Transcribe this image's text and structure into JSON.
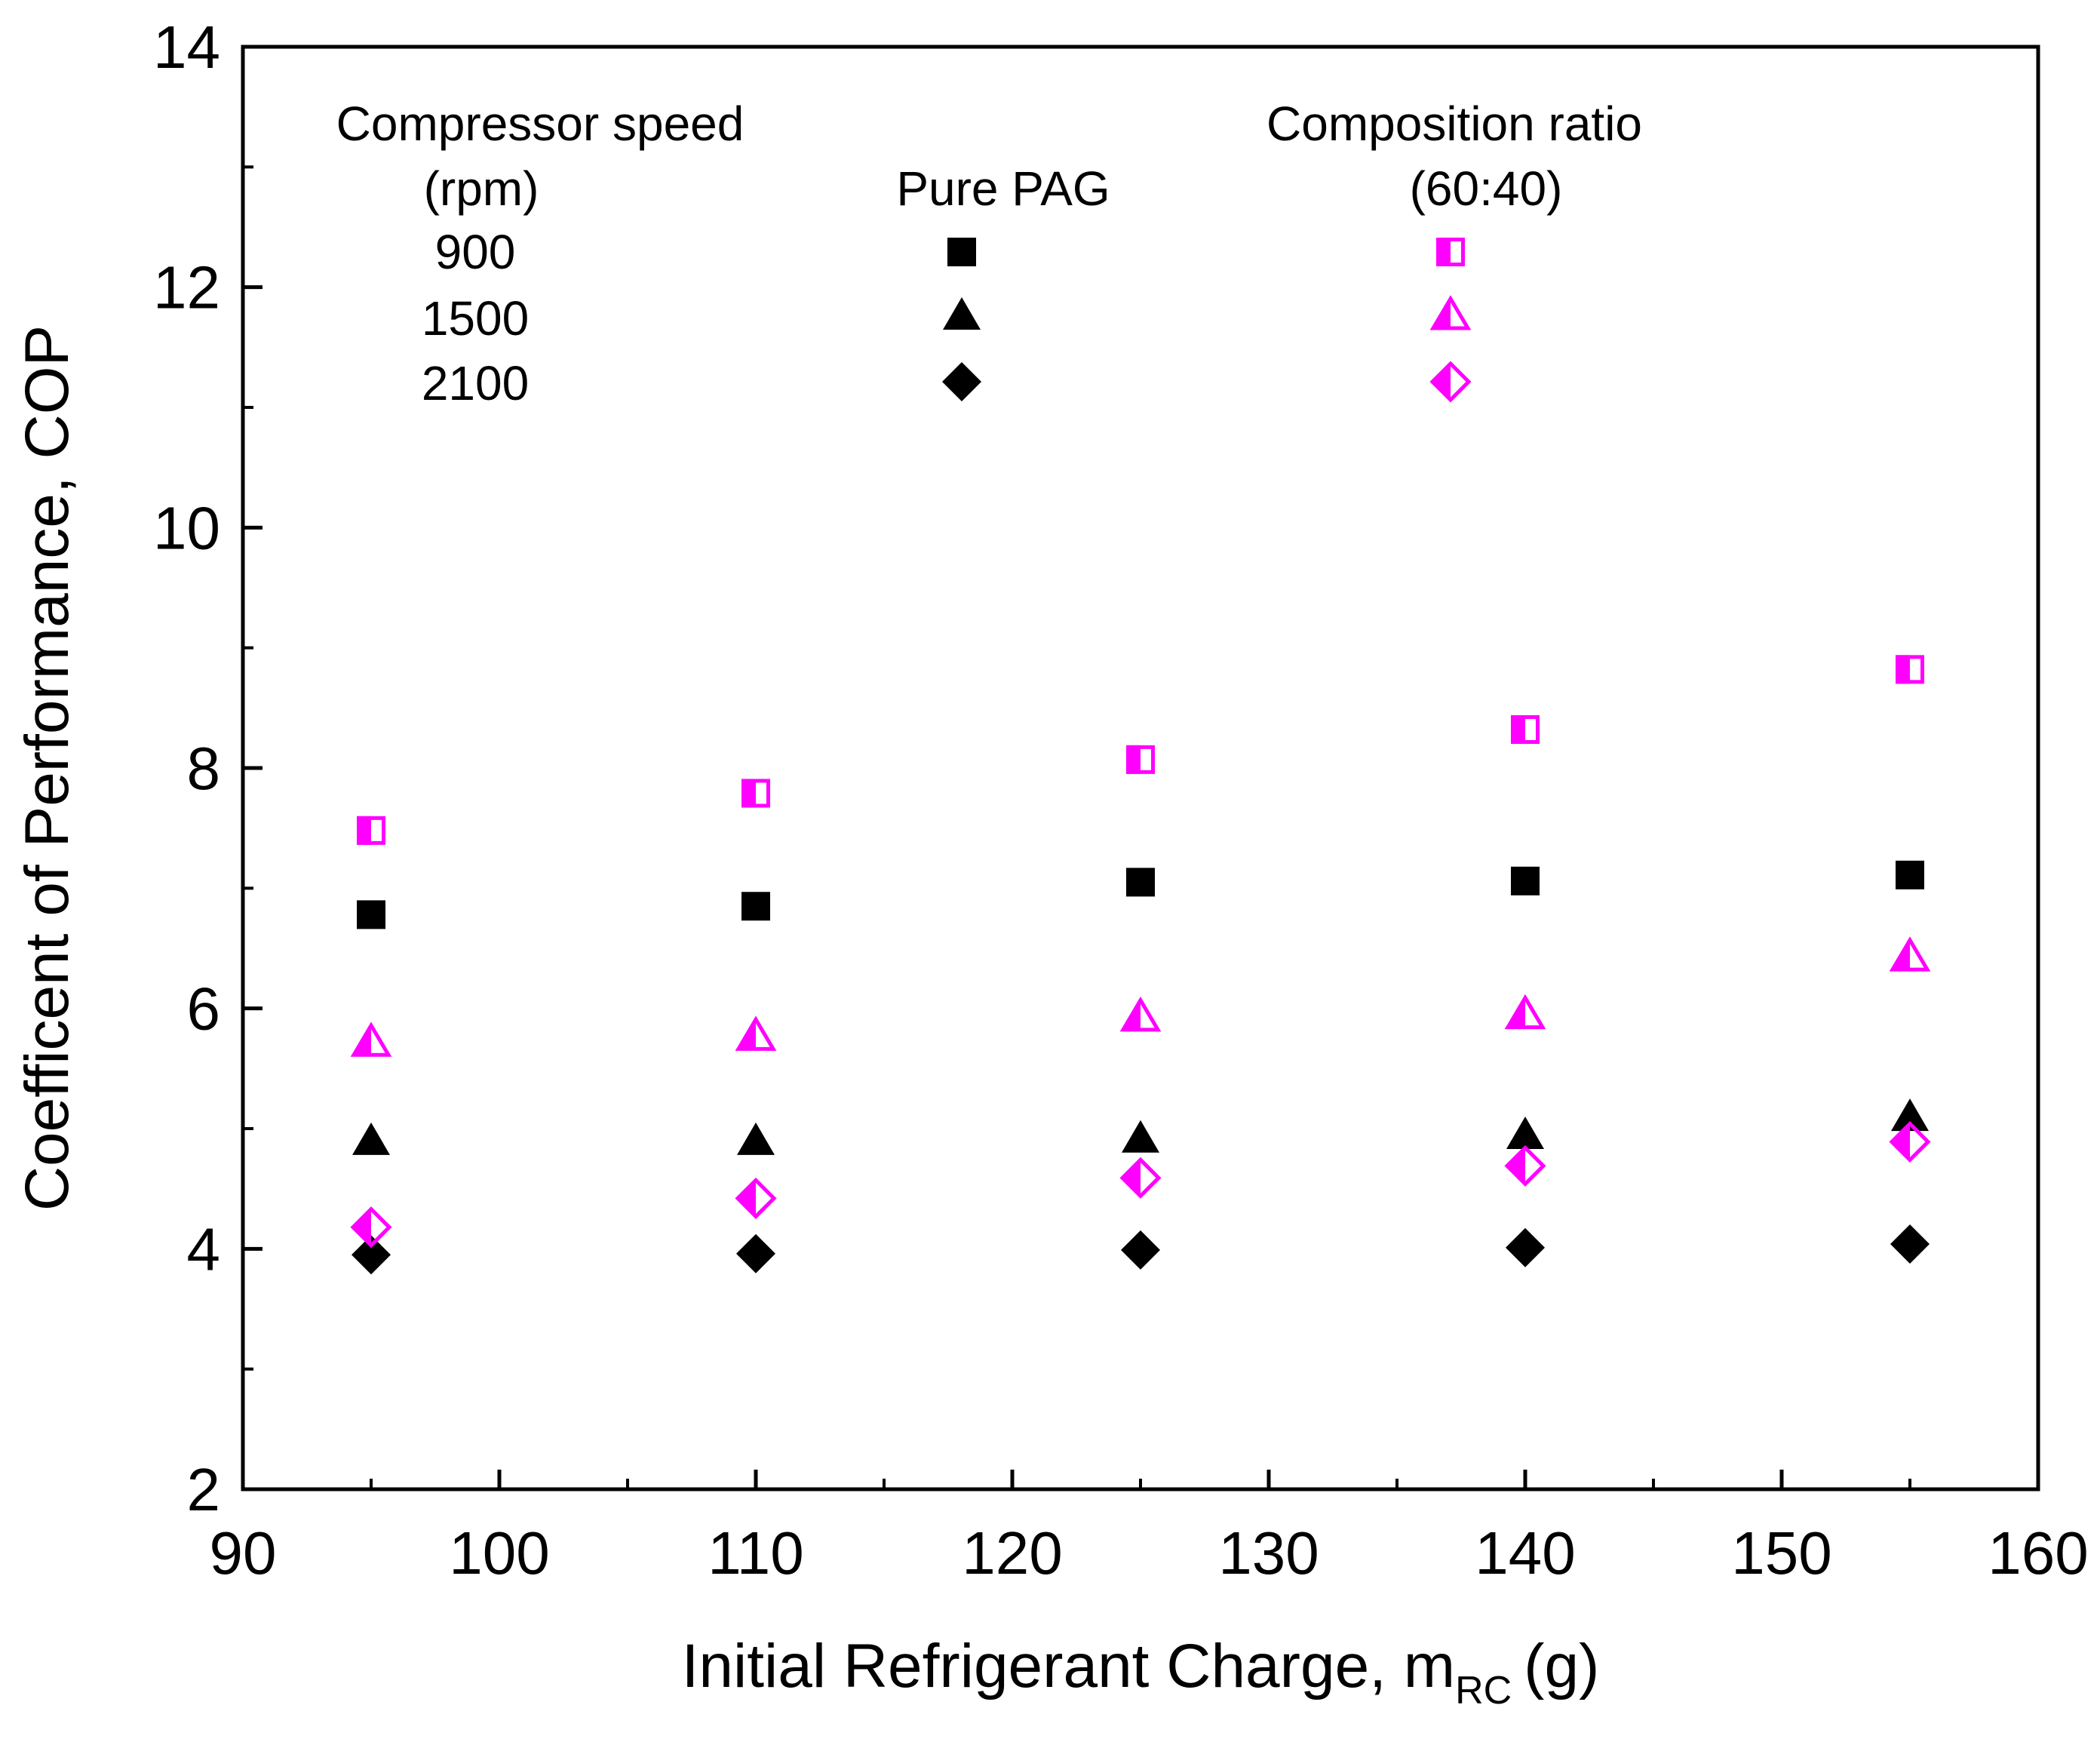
{
  "chart_data": {
    "type": "scatter",
    "title": "",
    "xlabel": "Initial Refrigerant Charge, m",
    "xlabel_sub": "RC",
    "xlabel_unit": "(g)",
    "ylabel": "Coefficent of Performance, COP",
    "xlim": [
      90,
      160
    ],
    "ylim": [
      2,
      14
    ],
    "xticks": [
      90,
      100,
      110,
      120,
      130,
      140,
      150,
      160
    ],
    "yticks": [
      2,
      4,
      6,
      8,
      10,
      12,
      14
    ],
    "grid": false,
    "legend": {
      "position": "top",
      "speed_header_line1": "Compressor speed",
      "speed_header_line2": "(rpm)",
      "pure_header": "Pure PAG",
      "comp_header_line1": "Composition ratio",
      "comp_header_line2": "(60:40)",
      "speeds": [
        "900",
        "1500",
        "2100"
      ]
    },
    "colors": {
      "pure": "#000000",
      "composition": "#ff00ff"
    },
    "x": [
      95,
      110,
      125,
      140,
      155
    ],
    "series": [
      {
        "name": "Pure PAG 900 rpm",
        "group": "pure",
        "marker": "square",
        "values": [
          6.78,
          6.85,
          7.05,
          7.06,
          7.11
        ]
      },
      {
        "name": "Pure PAG 1500 rpm",
        "group": "pure",
        "marker": "triangle",
        "values": [
          4.9,
          4.9,
          4.92,
          4.95,
          5.1
        ]
      },
      {
        "name": "Pure PAG 2100 rpm",
        "group": "pure",
        "marker": "diamond",
        "values": [
          3.95,
          3.96,
          3.99,
          4.01,
          4.04
        ]
      },
      {
        "name": "Composition ratio (60:40) 900 rpm",
        "group": "composition",
        "marker": "square-half",
        "values": [
          7.48,
          7.79,
          8.07,
          8.32,
          8.82
        ]
      },
      {
        "name": "Composition ratio (60:40) 1500 rpm",
        "group": "composition",
        "marker": "triangle-half",
        "values": [
          5.72,
          5.77,
          5.93,
          5.95,
          6.43
        ]
      },
      {
        "name": "Composition ratio (60:40) 2100 rpm",
        "group": "composition",
        "marker": "diamond-half",
        "values": [
          4.18,
          4.42,
          4.59,
          4.69,
          4.89
        ]
      }
    ]
  }
}
